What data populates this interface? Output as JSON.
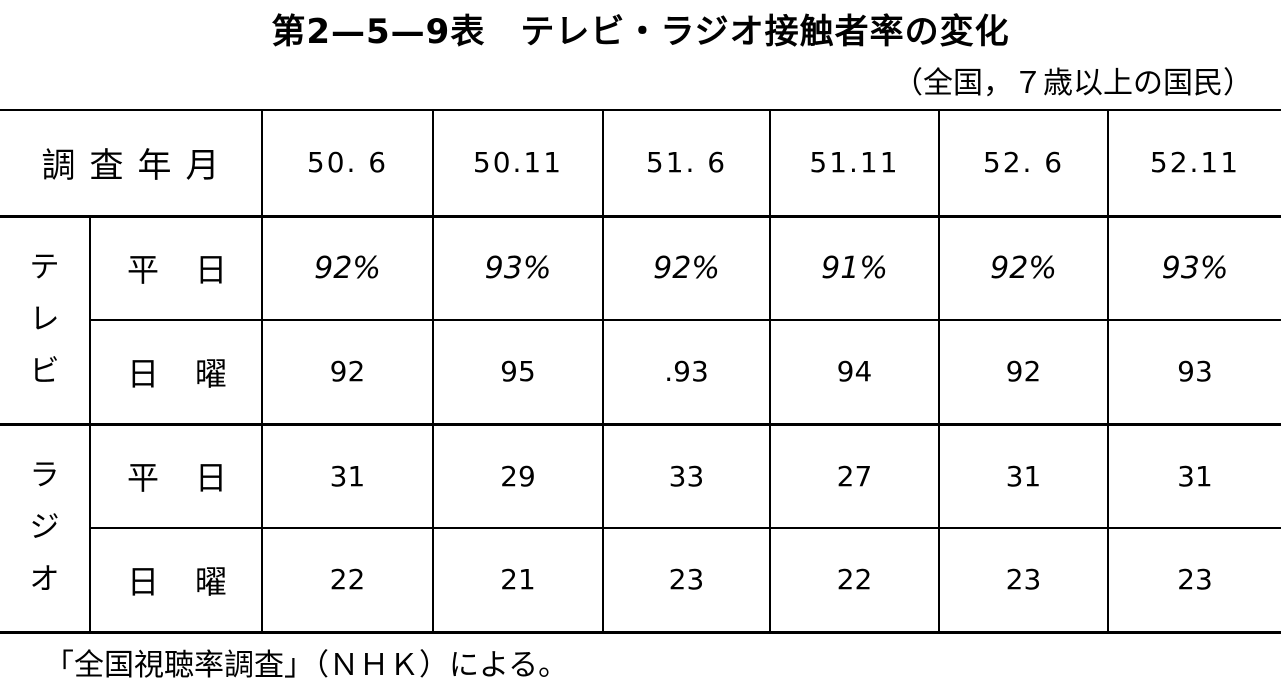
{
  "title": "第2—5—9表　テレビ・ラジオ接触者率の変化",
  "subtitle": "（全国，７歳以上の国民）",
  "table": {
    "header_label": "調査年月",
    "periods": [
      "50. 6",
      "50.11",
      "51. 6",
      "51.11",
      "52. 6",
      "52.11"
    ],
    "groups": [
      {
        "label_chars": [
          "テ",
          "レ",
          "ビ"
        ],
        "rows": [
          {
            "day": "平日",
            "values": [
              "92%",
              "93%",
              "92%",
              "91%",
              "92%",
              "93%"
            ]
          },
          {
            "day": "日曜",
            "values": [
              "92",
              "95",
              ".93",
              "94",
              "92",
              "93"
            ]
          }
        ]
      },
      {
        "label_chars": [
          "ラ",
          "ジ",
          "オ"
        ],
        "rows": [
          {
            "day": "平日",
            "values": [
              "31",
              "29",
              "33",
              "27",
              "31",
              "31"
            ]
          },
          {
            "day": "日曜",
            "values": [
              "22",
              "21",
              "23",
              "22",
              "23",
              "23"
            ]
          }
        ]
      }
    ]
  },
  "source": "「全国視聴率調査」（ＮＨＫ）による。"
}
